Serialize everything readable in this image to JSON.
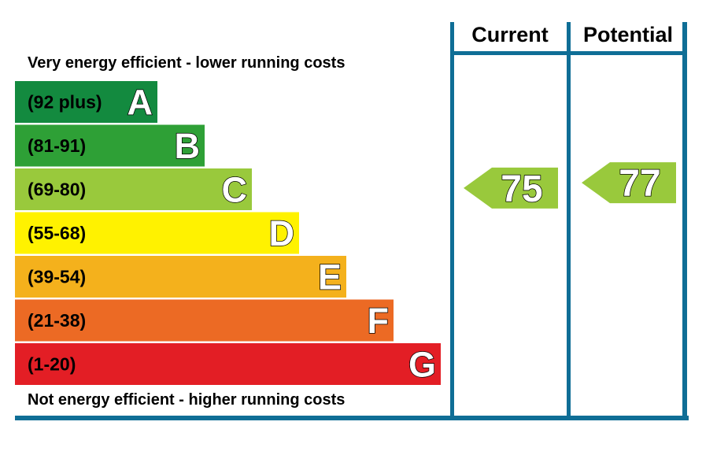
{
  "header": {
    "top_text": "Very energy efficient - lower running costs",
    "bottom_text": "Not energy efficient - higher running costs"
  },
  "columns": {
    "current": "Current",
    "potential": "Potential"
  },
  "chart_data": {
    "type": "bar",
    "title": "",
    "categories": [
      "A",
      "B",
      "C",
      "D",
      "E",
      "F",
      "G"
    ],
    "bands": [
      {
        "letter": "A",
        "range": "(92 plus)",
        "min": 92,
        "max": 100,
        "color": "#138a3f"
      },
      {
        "letter": "B",
        "range": "(81-91)",
        "min": 81,
        "max": 91,
        "color": "#2ea036"
      },
      {
        "letter": "C",
        "range": "(69-80)",
        "min": 69,
        "max": 80,
        "color": "#99c93c"
      },
      {
        "letter": "D",
        "range": "(55-68)",
        "min": 55,
        "max": 68,
        "color": "#fff200"
      },
      {
        "letter": "E",
        "range": "(39-54)",
        "min": 39,
        "max": 54,
        "color": "#f4b11c"
      },
      {
        "letter": "F",
        "range": "(21-38)",
        "min": 21,
        "max": 38,
        "color": "#ec6a24"
      },
      {
        "letter": "G",
        "range": "(1-20)",
        "min": 1,
        "max": 20,
        "color": "#e31e25"
      }
    ],
    "current": {
      "value": 75,
      "band": "C",
      "color": "#99c93c"
    },
    "potential": {
      "value": 77,
      "band": "C",
      "color": "#99c93c"
    },
    "frame_color": "#0f6e96"
  }
}
